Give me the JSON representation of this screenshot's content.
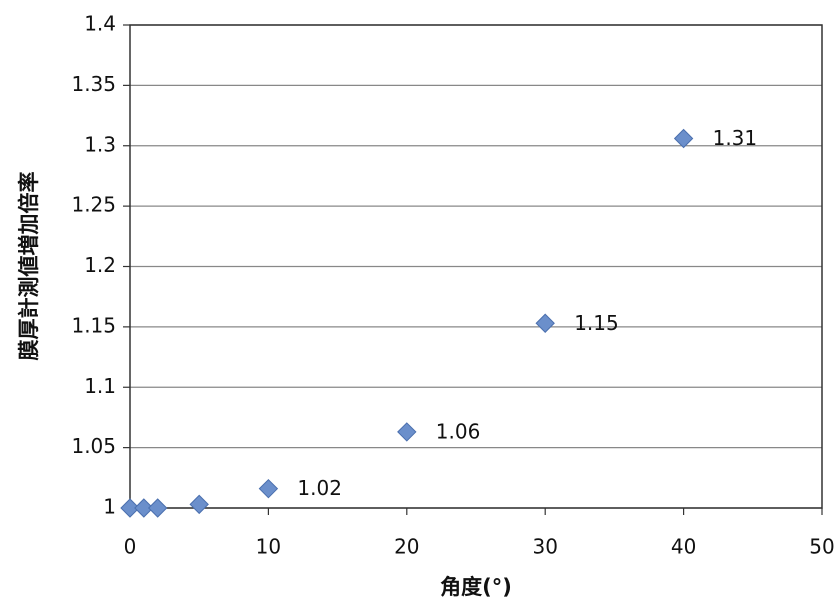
{
  "chart_data": {
    "type": "scatter",
    "x_label": "角度(°)",
    "y_label": "膜厚計測値増加倍率",
    "x": [
      0,
      1,
      2,
      5,
      10,
      20,
      30,
      40
    ],
    "values": [
      1.0,
      1.0,
      1.0,
      1.003,
      1.016,
      1.063,
      1.153,
      1.306
    ],
    "value_labels": [
      null,
      null,
      null,
      null,
      "1.02",
      "1.06",
      "1.15",
      "1.31"
    ],
    "color": "#6b8fcb",
    "xlim": [
      0,
      50
    ],
    "xticks": [
      0,
      10,
      20,
      30,
      40,
      50
    ],
    "ylim": [
      1,
      1.4
    ],
    "yticks": [
      1,
      1.05,
      1.1,
      1.15,
      1.2,
      1.25,
      1.3,
      1.35,
      1.4
    ],
    "grid": true
  }
}
